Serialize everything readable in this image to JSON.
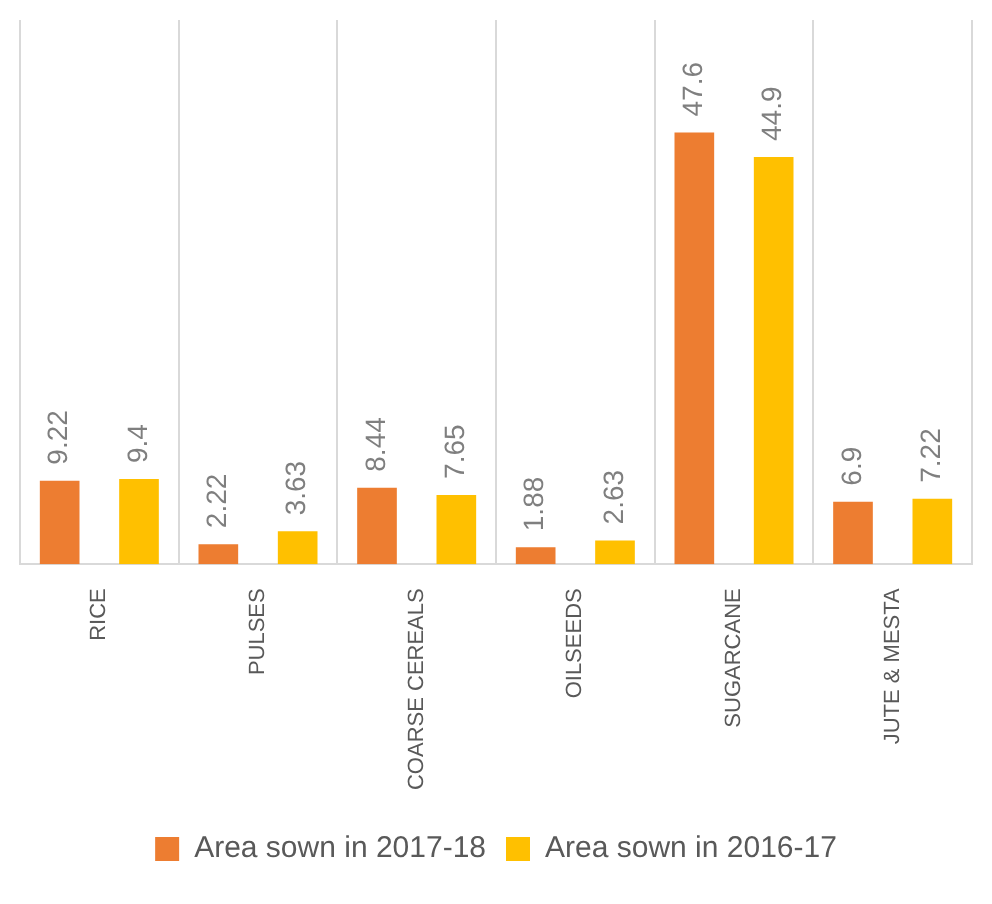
{
  "chart_data": {
    "type": "bar",
    "categories": [
      "RICE",
      "PULSES",
      "COARSE CEREALS",
      "OILSEEDS",
      "SUGARCANE",
      "JUTE & MESTA"
    ],
    "series": [
      {
        "name": "Area sown in 2017-18",
        "color": "#ed7d31",
        "values": [
          9.22,
          2.22,
          8.44,
          1.88,
          47.6,
          6.9
        ]
      },
      {
        "name": "Area sown in 2016-17",
        "color": "#ffc000",
        "values": [
          9.4,
          3.63,
          7.65,
          2.63,
          44.9,
          7.22
        ]
      }
    ],
    "data_labels": true,
    "grid": "x",
    "legend": "bottom",
    "tick_labels": "x"
  }
}
